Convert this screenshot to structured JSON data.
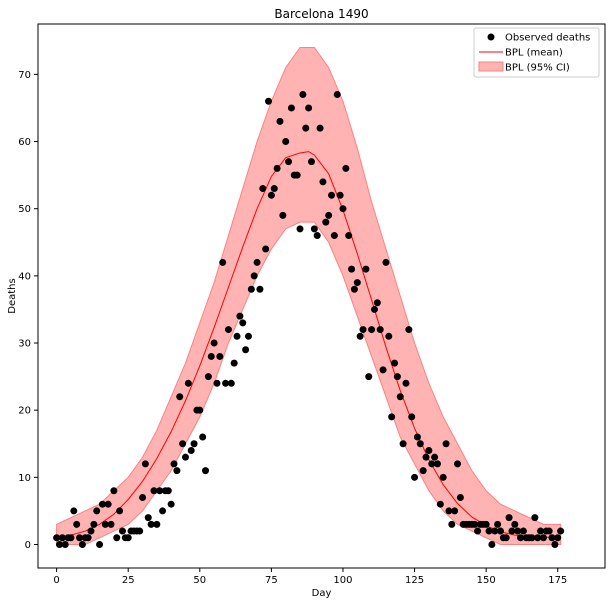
{
  "chart_data": {
    "type": "scatter",
    "title": "Barcelona 1490",
    "xlabel": "Day",
    "ylabel": "Deaths",
    "xlim": [
      -6.5,
      191.5
    ],
    "ylim": [
      -3.5,
      77.5
    ],
    "xticks": [
      0,
      25,
      50,
      75,
      100,
      125,
      150,
      175
    ],
    "yticks": [
      0,
      10,
      20,
      30,
      40,
      50,
      60,
      70
    ],
    "grid": false,
    "legend_position": "top-right",
    "colors": {
      "observed": "#000000",
      "mean": "#ff0000",
      "ci_fill": "#ffb3b3",
      "ci_edge": "#ff8080"
    },
    "series": [
      {
        "name": "Observed deaths",
        "kind": "points",
        "points": [
          [
            0,
            1
          ],
          [
            1,
            0
          ],
          [
            2,
            1
          ],
          [
            3,
            0
          ],
          [
            4,
            1
          ],
          [
            5,
            1
          ],
          [
            6,
            5
          ],
          [
            7,
            3
          ],
          [
            8,
            1
          ],
          [
            9,
            0
          ],
          [
            10,
            1
          ],
          [
            11,
            1
          ],
          [
            12,
            2
          ],
          [
            13,
            3
          ],
          [
            14,
            5
          ],
          [
            15,
            0
          ],
          [
            16,
            6
          ],
          [
            17,
            3
          ],
          [
            18,
            6
          ],
          [
            19,
            3
          ],
          [
            20,
            8
          ],
          [
            21,
            1
          ],
          [
            22,
            5
          ],
          [
            23,
            2
          ],
          [
            24,
            1
          ],
          [
            25,
            1
          ],
          [
            26,
            2
          ],
          [
            27,
            2
          ],
          [
            28,
            2
          ],
          [
            29,
            2
          ],
          [
            30,
            7
          ],
          [
            31,
            12
          ],
          [
            32,
            4
          ],
          [
            33,
            3
          ],
          [
            34,
            8
          ],
          [
            35,
            3
          ],
          [
            36,
            8
          ],
          [
            37,
            5
          ],
          [
            38,
            8
          ],
          [
            39,
            8
          ],
          [
            40,
            6
          ],
          [
            41,
            12
          ],
          [
            42,
            11
          ],
          [
            43,
            22
          ],
          [
            44,
            15
          ],
          [
            45,
            13
          ],
          [
            46,
            24
          ],
          [
            47,
            14
          ],
          [
            48,
            15
          ],
          [
            49,
            20
          ],
          [
            50,
            20
          ],
          [
            51,
            16
          ],
          [
            52,
            11
          ],
          [
            53,
            25
          ],
          [
            54,
            28
          ],
          [
            55,
            30
          ],
          [
            56,
            24
          ],
          [
            57,
            28
          ],
          [
            58,
            42
          ],
          [
            59,
            24
          ],
          [
            60,
            32
          ],
          [
            61,
            24
          ],
          [
            62,
            27
          ],
          [
            63,
            31
          ],
          [
            64,
            34
          ],
          [
            65,
            33
          ],
          [
            66,
            29
          ],
          [
            67,
            31
          ],
          [
            68,
            38
          ],
          [
            69,
            40
          ],
          [
            70,
            42
          ],
          [
            71,
            38
          ],
          [
            72,
            53
          ],
          [
            73,
            44
          ],
          [
            74,
            66
          ],
          [
            75,
            52
          ],
          [
            76,
            53
          ],
          [
            77,
            56
          ],
          [
            78,
            63
          ],
          [
            79,
            49
          ],
          [
            80,
            60
          ],
          [
            81,
            57
          ],
          [
            82,
            65
          ],
          [
            83,
            55
          ],
          [
            84,
            55
          ],
          [
            85,
            47
          ],
          [
            86,
            67
          ],
          [
            87,
            62
          ],
          [
            88,
            65
          ],
          [
            89,
            57
          ],
          [
            90,
            47
          ],
          [
            91,
            46
          ],
          [
            92,
            62
          ],
          [
            93,
            54
          ],
          [
            94,
            48
          ],
          [
            95,
            49
          ],
          [
            96,
            52
          ],
          [
            97,
            46
          ],
          [
            98,
            67
          ],
          [
            99,
            52
          ],
          [
            100,
            50
          ],
          [
            101,
            56
          ],
          [
            102,
            46
          ],
          [
            103,
            41
          ],
          [
            104,
            38
          ],
          [
            105,
            39
          ],
          [
            106,
            31
          ],
          [
            107,
            32
          ],
          [
            108,
            41
          ],
          [
            109,
            25
          ],
          [
            110,
            32
          ],
          [
            111,
            35
          ],
          [
            112,
            36
          ],
          [
            113,
            32
          ],
          [
            114,
            26
          ],
          [
            115,
            42
          ],
          [
            116,
            31
          ],
          [
            117,
            19
          ],
          [
            118,
            27
          ],
          [
            119,
            25
          ],
          [
            120,
            22
          ],
          [
            121,
            15
          ],
          [
            122,
            24
          ],
          [
            123,
            32
          ],
          [
            124,
            19
          ],
          [
            125,
            10
          ],
          [
            126,
            16
          ],
          [
            127,
            15
          ],
          [
            128,
            11
          ],
          [
            129,
            13
          ],
          [
            130,
            14
          ],
          [
            131,
            12
          ],
          [
            132,
            13
          ],
          [
            133,
            12
          ],
          [
            134,
            6
          ],
          [
            135,
            10
          ],
          [
            136,
            15
          ],
          [
            137,
            5
          ],
          [
            138,
            3
          ],
          [
            139,
            5
          ],
          [
            140,
            12
          ],
          [
            141,
            7
          ],
          [
            142,
            3
          ],
          [
            143,
            3
          ],
          [
            144,
            3
          ],
          [
            145,
            3
          ],
          [
            146,
            3
          ],
          [
            147,
            2
          ],
          [
            148,
            3
          ],
          [
            149,
            3
          ],
          [
            150,
            3
          ],
          [
            151,
            2
          ],
          [
            152,
            0
          ],
          [
            153,
            2
          ],
          [
            154,
            3
          ],
          [
            155,
            2
          ],
          [
            156,
            1
          ],
          [
            157,
            1
          ],
          [
            158,
            4
          ],
          [
            159,
            2
          ],
          [
            160,
            3
          ],
          [
            161,
            2
          ],
          [
            162,
            1
          ],
          [
            163,
            2
          ],
          [
            164,
            1
          ],
          [
            165,
            1
          ],
          [
            166,
            1
          ],
          [
            167,
            4
          ],
          [
            168,
            1
          ],
          [
            169,
            2
          ],
          [
            170,
            1
          ],
          [
            171,
            2
          ],
          [
            172,
            2
          ],
          [
            173,
            1
          ],
          [
            174,
            0
          ],
          [
            175,
            1
          ],
          [
            176,
            2
          ]
        ]
      },
      {
        "name": "BPL (mean)",
        "kind": "line",
        "points": [
          [
            0,
            1
          ],
          [
            5,
            1.4
          ],
          [
            10,
            2
          ],
          [
            15,
            3
          ],
          [
            20,
            4.5
          ],
          [
            25,
            6.7
          ],
          [
            30,
            9.4
          ],
          [
            35,
            12.8
          ],
          [
            40,
            16.8
          ],
          [
            45,
            21.4
          ],
          [
            50,
            26.6
          ],
          [
            55,
            32.3
          ],
          [
            60,
            38.3
          ],
          [
            65,
            44.3
          ],
          [
            70,
            50
          ],
          [
            75,
            54.8
          ],
          [
            80,
            57.6
          ],
          [
            85,
            58.3
          ],
          [
            88,
            58.5
          ],
          [
            90,
            58
          ],
          [
            95,
            55.2
          ],
          [
            100,
            49.8
          ],
          [
            105,
            43.3
          ],
          [
            110,
            36.4
          ],
          [
            115,
            29.4
          ],
          [
            120,
            22.9
          ],
          [
            125,
            17.3
          ],
          [
            130,
            12.6
          ],
          [
            135,
            8.9
          ],
          [
            140,
            6.1
          ],
          [
            145,
            4.1
          ],
          [
            150,
            2.8
          ],
          [
            155,
            1.9
          ],
          [
            160,
            1.4
          ],
          [
            165,
            1.2
          ],
          [
            170,
            1.1
          ],
          [
            176,
            1
          ]
        ]
      },
      {
        "name": "BPL (95% CI)",
        "kind": "band",
        "upper": [
          [
            0,
            3
          ],
          [
            5,
            4
          ],
          [
            10,
            5
          ],
          [
            15,
            6
          ],
          [
            20,
            8
          ],
          [
            25,
            10
          ],
          [
            30,
            13
          ],
          [
            35,
            17
          ],
          [
            40,
            22
          ],
          [
            45,
            27
          ],
          [
            50,
            33
          ],
          [
            55,
            39
          ],
          [
            60,
            46
          ],
          [
            65,
            53
          ],
          [
            70,
            60
          ],
          [
            75,
            66
          ],
          [
            80,
            71
          ],
          [
            85,
            74
          ],
          [
            90,
            74
          ],
          [
            95,
            71
          ],
          [
            100,
            66
          ],
          [
            105,
            59
          ],
          [
            110,
            51
          ],
          [
            115,
            44
          ],
          [
            120,
            37
          ],
          [
            125,
            30
          ],
          [
            130,
            24
          ],
          [
            135,
            19
          ],
          [
            140,
            15
          ],
          [
            145,
            11
          ],
          [
            150,
            8
          ],
          [
            155,
            6
          ],
          [
            160,
            5
          ],
          [
            165,
            4
          ],
          [
            170,
            3
          ],
          [
            176,
            3
          ]
        ],
        "lower": [
          [
            0,
            0
          ],
          [
            5,
            0
          ],
          [
            10,
            0
          ],
          [
            15,
            1
          ],
          [
            20,
            2
          ],
          [
            25,
            3
          ],
          [
            30,
            5
          ],
          [
            35,
            8
          ],
          [
            40,
            11
          ],
          [
            45,
            15
          ],
          [
            50,
            19
          ],
          [
            55,
            24
          ],
          [
            60,
            30
          ],
          [
            65,
            35
          ],
          [
            70,
            40
          ],
          [
            75,
            44
          ],
          [
            80,
            47
          ],
          [
            85,
            48
          ],
          [
            90,
            48
          ],
          [
            95,
            45
          ],
          [
            100,
            40
          ],
          [
            105,
            34
          ],
          [
            110,
            28
          ],
          [
            115,
            22
          ],
          [
            120,
            16
          ],
          [
            125,
            12
          ],
          [
            130,
            8
          ],
          [
            135,
            5
          ],
          [
            140,
            3
          ],
          [
            145,
            2
          ],
          [
            150,
            1
          ],
          [
            155,
            0
          ],
          [
            160,
            0
          ],
          [
            165,
            0
          ],
          [
            170,
            0
          ],
          [
            176,
            0
          ]
        ]
      }
    ]
  }
}
